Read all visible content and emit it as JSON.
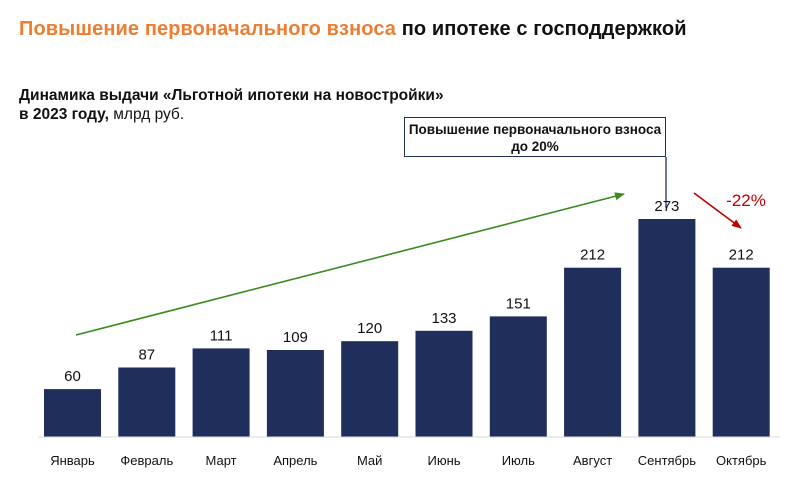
{
  "header": {
    "title_highlight": "Повышение первоначального взноса",
    "title_rest": "по ипотеке с господдержкой"
  },
  "chart_data": {
    "type": "bar",
    "title_line1": "Динамика выдачи «Льготной ипотеки на новостройки»",
    "title_line2": "в 2023 году,",
    "unit": "млрд руб.",
    "categories": [
      "Январь",
      "Февраль",
      "Март",
      "Апрель",
      "Май",
      "Июнь",
      "Июль",
      "Август",
      "Сентябрь",
      "Октябрь"
    ],
    "values": [
      60,
      87,
      111,
      109,
      120,
      133,
      151,
      212,
      273,
      212
    ],
    "ylim": [
      0,
      273
    ],
    "grid": false,
    "legend": "none",
    "bar_color": "#1F2E5A",
    "annotations": {
      "callout": "Повышение первоначального взноса до 20%",
      "change_label": "-22%",
      "change_color": "#C00000",
      "trend_color": "#3A8A1E"
    }
  }
}
